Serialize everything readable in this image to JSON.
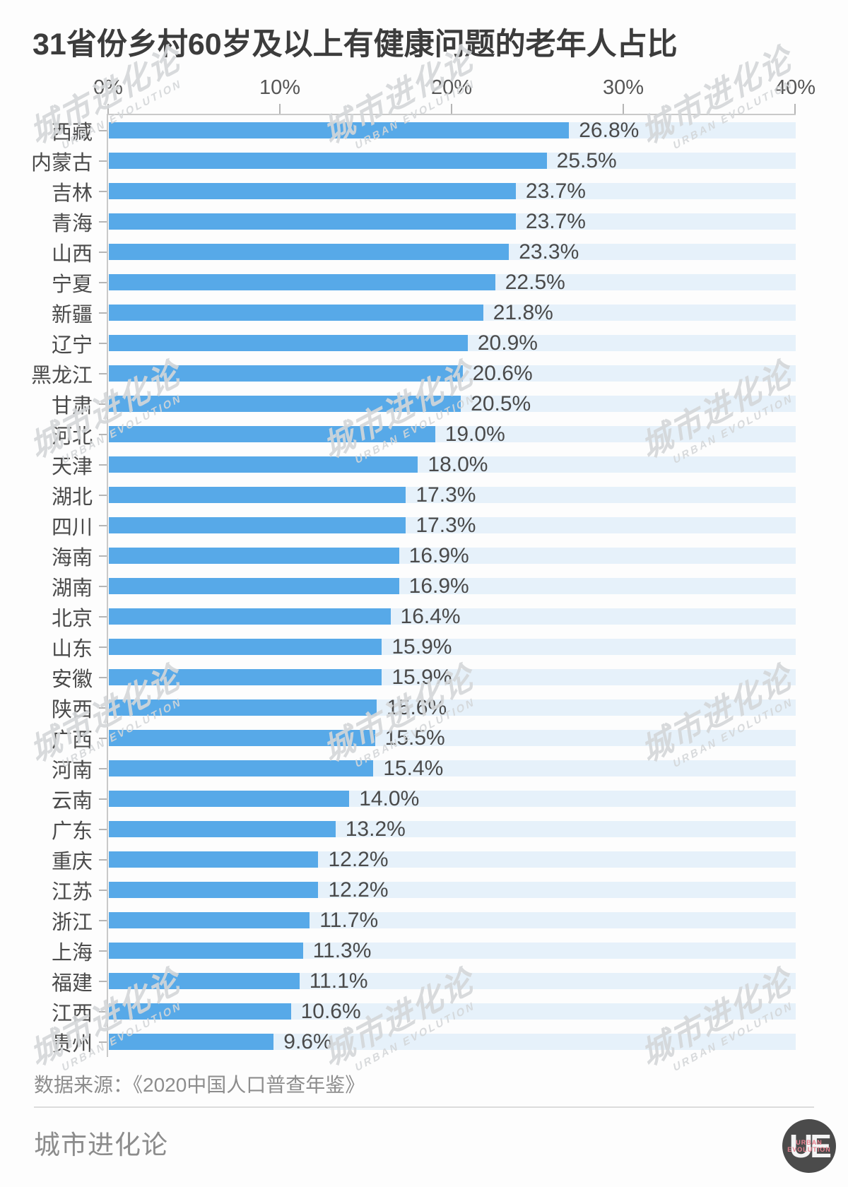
{
  "title": "31省份乡村60岁及以上有健康问题的老年人占比",
  "chart_data": {
    "type": "bar",
    "orientation": "horizontal",
    "title": "31省份乡村60岁及以上有健康问题的老年人占比",
    "categories": [
      "西藏",
      "内蒙古",
      "吉林",
      "青海",
      "山西",
      "宁夏",
      "新疆",
      "辽宁",
      "黑龙江",
      "甘肃",
      "河北",
      "天津",
      "湖北",
      "四川",
      "海南",
      "湖南",
      "北京",
      "山东",
      "安徽",
      "陕西",
      "广西",
      "河南",
      "云南",
      "广东",
      "重庆",
      "江苏",
      "浙江",
      "上海",
      "福建",
      "江西",
      "贵州"
    ],
    "values": [
      26.8,
      25.5,
      23.7,
      23.7,
      23.3,
      22.5,
      21.8,
      20.9,
      20.6,
      20.5,
      19.0,
      18.0,
      17.3,
      17.3,
      16.9,
      16.9,
      16.4,
      15.9,
      15.9,
      15.6,
      15.5,
      15.4,
      14.0,
      13.2,
      12.2,
      12.2,
      11.7,
      11.3,
      11.1,
      10.6,
      9.6
    ],
    "x_tick_labels": [
      "0%",
      "10%",
      "20%",
      "30%",
      "40%"
    ],
    "xlim": [
      0,
      40
    ],
    "grid": false,
    "legend": false,
    "bar_color": "#57a9e8",
    "track_color": "#e6f1fa",
    "value_suffix": "%"
  },
  "source": "数据来源：《2020中国人口普查年鉴》",
  "footer": {
    "brand": "城市进化论",
    "logo_monogram": "UE",
    "logo_sub_line1": "URBAN",
    "logo_sub_line2": "EVOLUTION",
    "logo_bg_color": "#4b4b4b",
    "logo_accent_color": "#e8808f"
  },
  "watermark": {
    "text": "城市进化论",
    "subtext": "URBAN EVOLUTION"
  }
}
